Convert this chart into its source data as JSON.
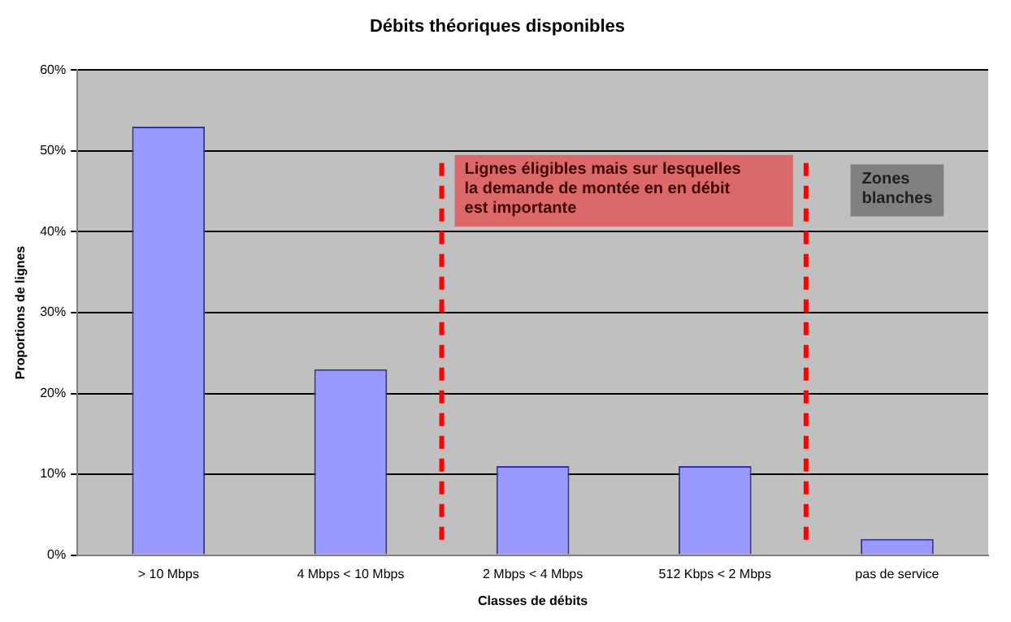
{
  "chart_data": {
    "type": "bar",
    "title": "Débits théoriques disponibles",
    "xlabel": "Classes de débits",
    "ylabel": "Proportions de lignes",
    "categories": [
      "> 10 Mbps",
      "4 Mbps < 10 Mbps",
      "2 Mbps < 4 Mbps",
      "512 Kbps < 2 Mbps",
      "pas de service"
    ],
    "values": [
      53,
      23,
      11,
      11,
      2
    ],
    "color": "#9999ff",
    "ylim": [
      0,
      60
    ],
    "yticks": [
      {
        "value": 0,
        "label": "0%"
      },
      {
        "value": 10,
        "label": "10%"
      },
      {
        "value": 20,
        "label": "20%"
      },
      {
        "value": 30,
        "label": "30%"
      },
      {
        "value": 40,
        "label": "40%"
      },
      {
        "value": 50,
        "label": "50%"
      },
      {
        "value": 60,
        "label": "60%"
      }
    ],
    "grid": "y",
    "bands": [
      {
        "axis": "x",
        "from": "2 Mbps < 4 Mbps",
        "to": "512 Kbps < 2 Mbps",
        "label": "Lignes éligibles mais sur lesquelles\nla demande de montée en en débit\nest importante",
        "color": "#ff0000"
      }
    ],
    "annotations": [
      "Zones\nblanches"
    ]
  }
}
